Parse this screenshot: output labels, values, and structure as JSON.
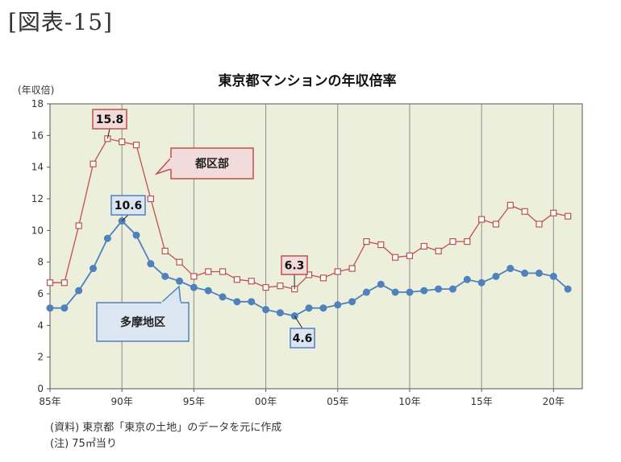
{
  "figure_label": "[図表-15]",
  "notes": {
    "source": "(資料) 東京都「東京の土地」のデータを元に作成",
    "footnote": "(注) 75㎡当り"
  },
  "colors": {
    "plot_bg": "#ecefdc",
    "tokyo_ward": "#c0504d",
    "tama": "#4f81bd",
    "gridline": "#8c8c8c",
    "callout_red_fill": "#f2dcdb",
    "callout_blue_fill": "#dce6f2"
  },
  "chart_data": {
    "type": "line",
    "title": "東京都マンションの年収倍率",
    "ylabel": "(年収倍)",
    "xlabel": "",
    "ylim": [
      0,
      18
    ],
    "yticks": [
      0,
      2,
      4,
      6,
      8,
      10,
      12,
      14,
      16,
      18
    ],
    "xlim": [
      1985,
      2022
    ],
    "xticks": [
      {
        "value": 1985,
        "label": "85年"
      },
      {
        "value": 1990,
        "label": "90年"
      },
      {
        "value": 1995,
        "label": "95年"
      },
      {
        "value": 2000,
        "label": "00年"
      },
      {
        "value": 2005,
        "label": "05年"
      },
      {
        "value": 2010,
        "label": "10年"
      },
      {
        "value": 2015,
        "label": "15年"
      },
      {
        "value": 2020,
        "label": "20年"
      }
    ],
    "grid": "vertical",
    "x": [
      1985,
      1986,
      1987,
      1988,
      1989,
      1990,
      1991,
      1992,
      1993,
      1994,
      1995,
      1996,
      1997,
      1998,
      1999,
      2000,
      2001,
      2002,
      2003,
      2004,
      2005,
      2006,
      2007,
      2008,
      2009,
      2010,
      2011,
      2012,
      2013,
      2014,
      2015,
      2016,
      2017,
      2018,
      2019,
      2020,
      2021
    ],
    "series": [
      {
        "name": "都区部",
        "color": "#c0504d",
        "marker": "open-square",
        "values": [
          6.7,
          6.7,
          10.3,
          14.2,
          15.8,
          15.6,
          15.4,
          12.0,
          8.7,
          8.0,
          7.1,
          7.4,
          7.4,
          6.9,
          6.8,
          6.4,
          6.5,
          6.3,
          7.2,
          7.0,
          7.4,
          7.6,
          9.3,
          9.1,
          8.3,
          8.4,
          9.0,
          8.7,
          9.3,
          9.3,
          10.7,
          10.4,
          11.6,
          11.2,
          10.4,
          11.1,
          10.9
        ]
      },
      {
        "name": "多摩地区",
        "color": "#4f81bd",
        "marker": "filled-circle",
        "values": [
          5.1,
          5.1,
          6.2,
          7.6,
          9.5,
          10.6,
          9.7,
          7.9,
          7.1,
          6.8,
          6.4,
          6.2,
          5.8,
          5.5,
          5.5,
          5.0,
          4.8,
          4.6,
          5.1,
          5.1,
          5.3,
          5.5,
          6.1,
          6.6,
          6.1,
          6.1,
          6.2,
          6.3,
          6.3,
          6.9,
          6.7,
          7.1,
          7.6,
          7.3,
          7.3,
          7.1,
          6.3
        ]
      }
    ],
    "annotations": [
      {
        "text": "15.8",
        "x": 1989,
        "y": 15.8,
        "series": "都区部"
      },
      {
        "text": "10.6",
        "x": 1990,
        "y": 10.6,
        "series": "多摩地区"
      },
      {
        "text": "6.3",
        "x": 2002,
        "y": 6.3,
        "series": "都区部"
      },
      {
        "text": "4.6",
        "x": 2002,
        "y": 4.6,
        "series": "多摩地区"
      }
    ],
    "callouts": [
      {
        "text": "都区部",
        "series": "都区部"
      },
      {
        "text": "多摩地区",
        "series": "多摩地区"
      }
    ]
  }
}
